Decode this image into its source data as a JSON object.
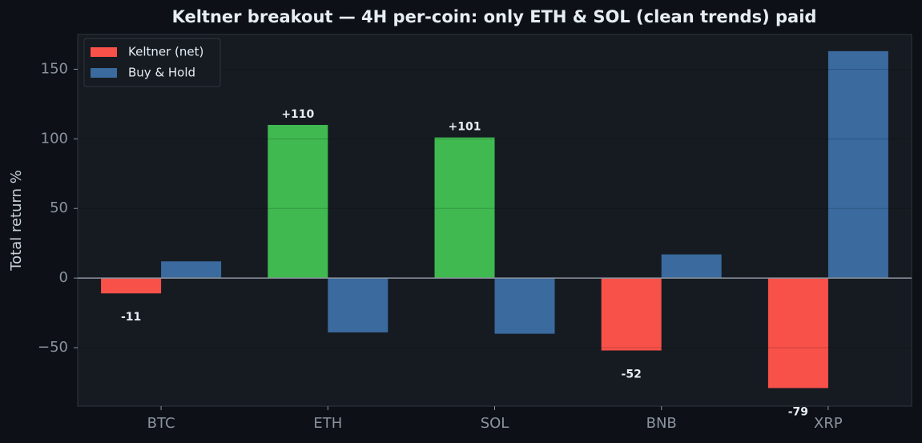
{
  "chart_data": {
    "type": "bar",
    "title": "Keltner breakout — 4H per-coin: only ETH & SOL (clean trends) paid",
    "y_label": "Total return %",
    "categories": [
      "BTC",
      "ETH",
      "SOL",
      "BNB",
      "XRP"
    ],
    "series": [
      {
        "name": "Keltner (net)",
        "color": "#f85149",
        "colors": [
          "#f85149",
          "#3fb950",
          "#3fb950",
          "#f85149",
          "#f85149"
        ],
        "values": [
          -11,
          110,
          101,
          -52,
          -79
        ],
        "value_labels": [
          "-11",
          "+110",
          "+101",
          "-52",
          "-79"
        ]
      },
      {
        "name": "Buy & Hold",
        "color": "#3a6a9e",
        "values": [
          12,
          -39,
          -40,
          17,
          163
        ]
      }
    ],
    "ylim": [
      -92,
      175
    ],
    "yticks": [
      {
        "value": -50,
        "label": "−50"
      },
      0,
      50,
      100,
      150
    ],
    "grid": true,
    "legend": "upper-left"
  }
}
